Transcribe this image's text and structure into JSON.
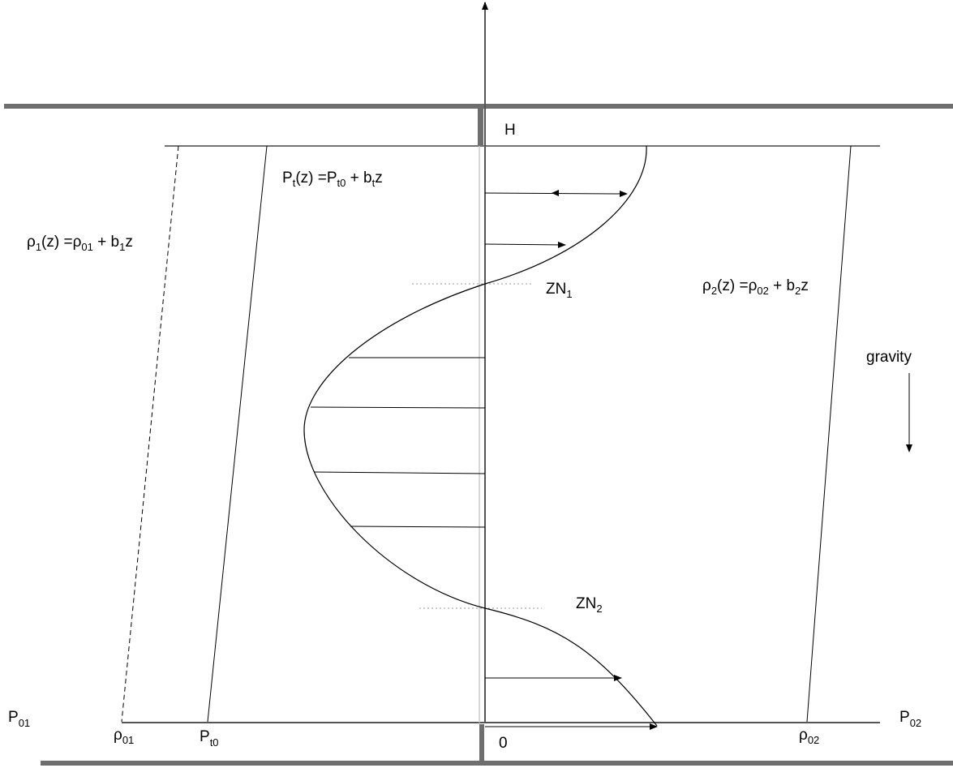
{
  "labels": {
    "top": "H",
    "origin": "0",
    "zn1": "ZN",
    "zn1_sub": "1",
    "zn2": "ZN",
    "zn2_sub": "2",
    "gravity": "gravity",
    "p01": "P",
    "p01_sub": "01",
    "p02": "P",
    "p02_sub": "02",
    "rho01": "ρ",
    "rho01_sub": "01",
    "rho02": "ρ",
    "rho02_sub": "02",
    "pt0": "P",
    "pt0_sub": "t0"
  },
  "equations": {
    "pt": {
      "a": "P",
      "a_sub": "t",
      "b": "(z) =P",
      "b_sub": "t0",
      "c": " + b",
      "c_sub": "t",
      "d": "z"
    },
    "rho1": {
      "a": "ρ",
      "a_sub": "1",
      "b": "(z) =ρ",
      "b_sub": "01",
      "c": " + b",
      "c_sub": "1",
      "d": "z"
    },
    "rho2": {
      "a": "ρ",
      "a_sub": "2",
      "b": "(z) =ρ",
      "b_sub": "02",
      "c": " + b",
      "c_sub": "2",
      "d": "z"
    }
  },
  "colors": {
    "wall": "#6e6e6e",
    "line": "#000000",
    "dotted": "#999999"
  }
}
